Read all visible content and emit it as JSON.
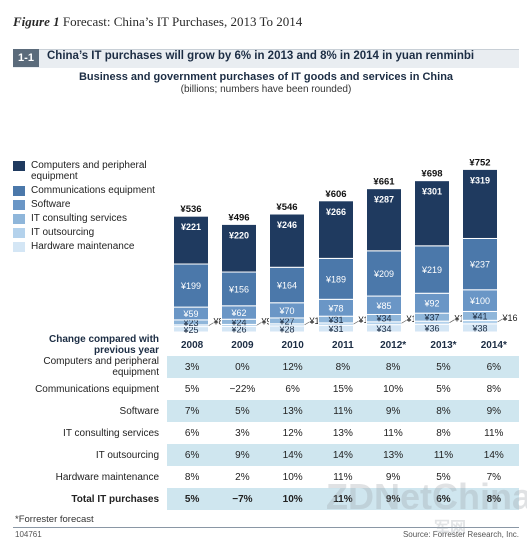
{
  "figure": {
    "label": "Figure 1",
    "title": "Forecast: China’s IT Purchases, 2013 To 2014"
  },
  "panel": {
    "number": "1-1",
    "headline": "China’s IT purchases will grow by 6% in 2013 and 8% in 2014 in yuan renminbi"
  },
  "colors": {
    "computers": "#1f3a5f",
    "communications": "#4b78aa",
    "software": "#6a96c6",
    "consulting": "#8fb6da",
    "outsourcing": "#b4d2ec",
    "hardware": "#d4e6f5",
    "table_shade": "#cfe6ef"
  },
  "chart_data": {
    "type": "bar",
    "stacked": true,
    "title": "Business and government purchases of IT goods and services in China",
    "subtitle": "(billions; numbers have been rounded)",
    "categories": [
      "2008",
      "2009",
      "2010",
      "2011",
      "2012*",
      "2013*",
      "2014*"
    ],
    "totals": [
      "¥536",
      "¥496",
      "¥546",
      "¥606",
      "¥661",
      "¥698",
      "¥752"
    ],
    "series": [
      {
        "name": "Hardware maintenance",
        "values": [
          25,
          26,
          28,
          31,
          34,
          36,
          38
        ],
        "labels": [
          "¥25",
          "¥26",
          "¥28",
          "¥31",
          "¥34",
          "¥36",
          "¥38"
        ]
      },
      {
        "name": "IT outsourcing",
        "values": [
          8,
          9,
          10,
          11,
          13,
          14,
          16
        ],
        "labels": [
          "¥8",
          "¥9",
          "¥10",
          "¥11",
          "¥13",
          "¥14",
          "¥16"
        ]
      },
      {
        "name": "IT consulting services",
        "values": [
          23,
          24,
          27,
          31,
          34,
          37,
          41
        ],
        "labels": [
          "¥23",
          "¥24",
          "¥27",
          "¥31",
          "¥34",
          "¥37",
          "¥41"
        ]
      },
      {
        "name": "Software",
        "values": [
          59,
          62,
          70,
          78,
          85,
          92,
          100
        ],
        "labels": [
          "¥59",
          "¥62",
          "¥70",
          "¥78",
          "¥85",
          "¥92",
          "¥100"
        ]
      },
      {
        "name": "Communications equipment",
        "values": [
          199,
          156,
          164,
          189,
          209,
          219,
          237
        ],
        "labels": [
          "¥199",
          "¥156",
          "¥164",
          "¥189",
          "¥209",
          "¥219",
          "¥237"
        ]
      },
      {
        "name": "Computers and peripheral equipment",
        "values": [
          221,
          220,
          246,
          266,
          287,
          301,
          319
        ],
        "labels": [
          "¥221",
          "¥220",
          "¥246",
          "¥266",
          "¥287",
          "¥301",
          "¥319"
        ]
      }
    ],
    "legend": {
      "placement": "left",
      "entries": [
        "Computers and peripheral equipment",
        "Communications equipment",
        "Software",
        "IT consulting services",
        "IT outsourcing",
        "Hardware maintenance"
      ]
    }
  },
  "table": {
    "header": "Change compared with previous year",
    "years": [
      "2008",
      "2009",
      "2010",
      "2011",
      "2012*",
      "2013*",
      "2014*"
    ],
    "rows": [
      {
        "label": "Computers and peripheral equipment",
        "values": [
          "3%",
          "0%",
          "12%",
          "8%",
          "8%",
          "5%",
          "6%"
        ],
        "shaded": true
      },
      {
        "label": "Communications equipment",
        "values": [
          "5%",
          "−22%",
          "6%",
          "15%",
          "10%",
          "5%",
          "8%"
        ],
        "shaded": false
      },
      {
        "label": "Software",
        "values": [
          "7%",
          "5%",
          "13%",
          "11%",
          "9%",
          "8%",
          "9%"
        ],
        "shaded": true
      },
      {
        "label": "IT consulting services",
        "values": [
          "6%",
          "3%",
          "12%",
          "13%",
          "11%",
          "8%",
          "11%"
        ],
        "shaded": false
      },
      {
        "label": "IT outsourcing",
        "values": [
          "6%",
          "9%",
          "14%",
          "14%",
          "13%",
          "11%",
          "14%"
        ],
        "shaded": true
      },
      {
        "label": "Hardware maintenance",
        "values": [
          "8%",
          "2%",
          "10%",
          "11%",
          "9%",
          "5%",
          "7%"
        ],
        "shaded": false
      },
      {
        "label": "Total IT purchases",
        "values": [
          "5%",
          "−7%",
          "10%",
          "11%",
          "9%",
          "6%",
          "8%"
        ],
        "shaded": true,
        "bold": true
      }
    ]
  },
  "footnote": "*Forrester forecast",
  "figure_id": "104761",
  "source": "Source: Forrester Research, Inc.",
  "watermark": {
    "brand": "ZDNetChina",
    "sub": "军网"
  }
}
